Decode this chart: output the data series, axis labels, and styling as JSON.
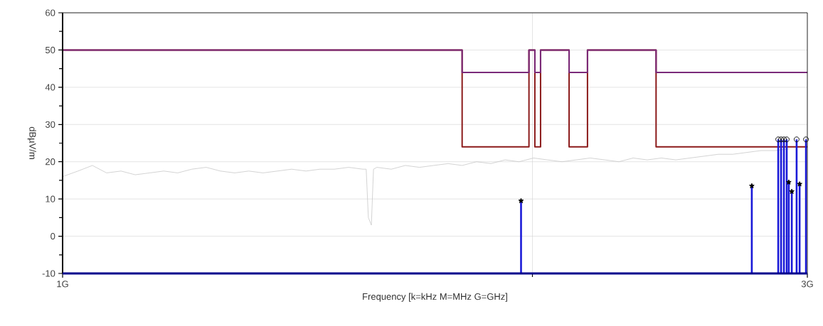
{
  "chart_data": {
    "type": "bar",
    "xlabel": "Frequency [k=kHz M=MHz G=GHz]",
    "ylabel": "dBµV/m",
    "log": "x",
    "grid": true,
    "xlim": [
      1,
      3
    ],
    "ylim": [
      -10,
      60
    ],
    "xticks": [
      {
        "value": 1,
        "label": "1G"
      },
      {
        "value": 2,
        "label": null
      },
      {
        "value": 3,
        "label": "3G"
      }
    ],
    "yticks": [
      -10,
      {
        "value": -5,
        "label": null
      },
      0,
      {
        "value": 5,
        "label": null
      },
      10,
      {
        "value": 15,
        "label": null
      },
      20,
      {
        "value": 25,
        "label": null
      },
      30,
      {
        "value": 35,
        "label": null
      },
      40,
      {
        "value": 45,
        "label": null
      },
      50,
      {
        "value": 55,
        "label": null
      },
      60
    ],
    "series": [
      {
        "type": "line",
        "color": "#c8c8c8",
        "x": [
          1.0,
          1.023,
          1.045,
          1.067,
          1.09,
          1.113,
          1.137,
          1.161,
          1.185,
          1.21,
          1.236,
          1.262,
          1.289,
          1.316,
          1.344,
          1.373,
          1.402,
          1.432,
          1.462,
          1.493,
          1.525,
          1.557,
          1.565,
          1.57,
          1.577,
          1.582,
          1.59,
          1.624,
          1.658,
          1.693,
          1.729,
          1.766,
          1.803,
          1.842,
          1.881,
          1.921,
          1.961,
          2.003,
          2.045,
          2.089,
          2.133,
          2.178,
          2.225,
          2.272,
          2.32,
          2.369,
          2.419,
          2.471,
          2.523,
          2.577,
          2.631,
          2.687,
          2.744,
          2.802,
          2.862,
          2.922
        ],
        "values": [
          16,
          17.5,
          19,
          17,
          17.5,
          16.5,
          17,
          17.5,
          17,
          18,
          18.5,
          17.5,
          17,
          17.5,
          17,
          17.5,
          18,
          17.5,
          18,
          18,
          18.5,
          18,
          18,
          5,
          3,
          18,
          18.5,
          18,
          19,
          18.5,
          19,
          19.5,
          19,
          20,
          19.5,
          20.5,
          20,
          21,
          20.5,
          20,
          20.5,
          21,
          20.5,
          20,
          21,
          20.5,
          21,
          20.5,
          21,
          21.5,
          22,
          22,
          22.5,
          23,
          23,
          23.5
        ]
      },
      {
        "type": "step",
        "color": "#8b1a1a",
        "x": [
          1,
          1.803,
          1.99,
          2.007,
          2.024,
          2.111,
          2.169,
          2.4,
          3
        ],
        "values": [
          50,
          24,
          50,
          24,
          50,
          24,
          50,
          24,
          24
        ]
      },
      {
        "type": "step",
        "color": "#7a2a7a",
        "x": [
          1,
          1.803,
          1.99,
          2.007,
          2.024,
          2.111,
          2.169,
          2.4,
          3
        ],
        "values": [
          50,
          44,
          50,
          44,
          50,
          44,
          50,
          44,
          44
        ]
      },
      {
        "color": "#1a1ad8",
        "x": [
          1.967,
          2.764,
          2.874,
          2.886,
          2.898,
          2.91,
          2.919,
          2.932,
          2.953,
          2.966,
          2.994
        ],
        "base": [
          -10,
          -10,
          -10,
          -10,
          -10,
          -10,
          -10,
          -10,
          -10,
          -10,
          -10
        ],
        "values": [
          19.5,
          23.5,
          36,
          36,
          36,
          36,
          24.5,
          22,
          36,
          24,
          36
        ]
      },
      {
        "type": "scatter",
        "color": "#000000",
        "marker": "star",
        "x": [
          1.967,
          2.764,
          2.919,
          2.932,
          2.966
        ],
        "values": [
          9.5,
          13.5,
          14.5,
          12,
          14
        ]
      },
      {
        "type": "scatter",
        "color": "#000000",
        "marker": "circle",
        "x": [
          2.874,
          2.886,
          2.898,
          2.91,
          2.953,
          2.994
        ],
        "values": [
          26,
          26,
          26,
          26,
          26,
          26
        ]
      }
    ]
  }
}
